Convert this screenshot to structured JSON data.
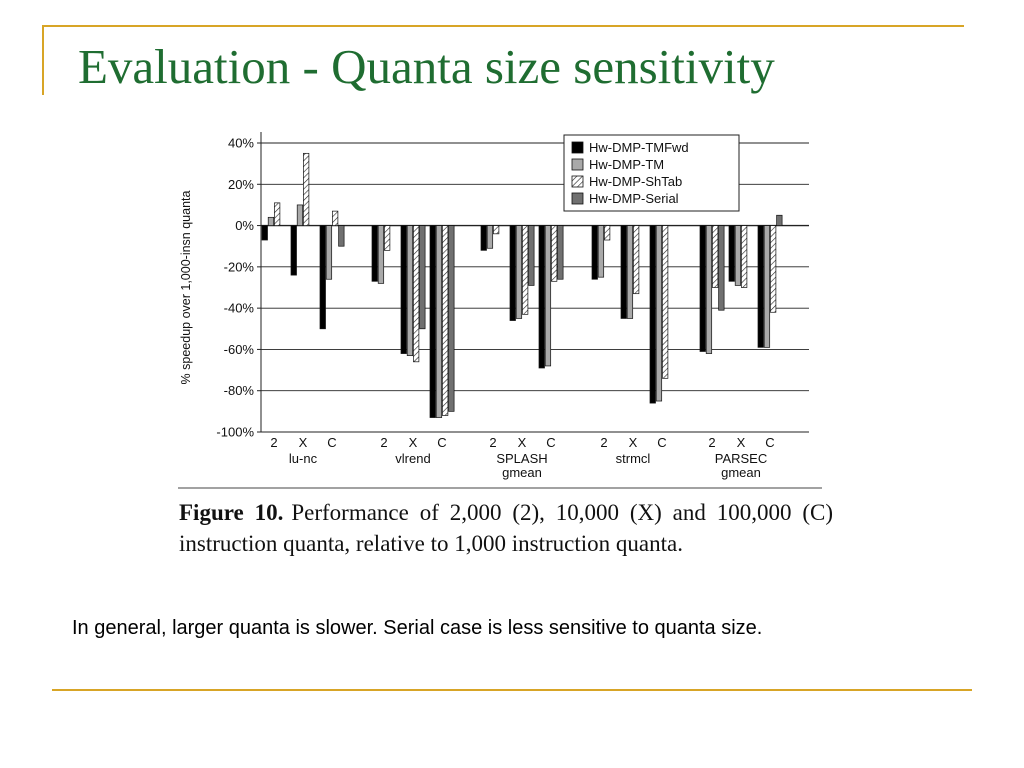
{
  "slide": {
    "title": "Evaluation -  Quanta size sensitivity",
    "note": "In general, larger quanta is slower. Serial case is less sensitive to quanta size.",
    "accent_color": "#d8a526",
    "title_color": "#1f6d31"
  },
  "figure": {
    "label": "Figure 10.",
    "caption": "Performance of 2,000 (2), 10,000 (X) and 100,000 (C) instruction quanta, relative to 1,000 instruction quanta."
  },
  "chart_data": {
    "type": "bar",
    "ylabel": "% speedup over 1,000-insn quanta",
    "ylim": [
      -100,
      40
    ],
    "yticks": [
      40,
      20,
      0,
      -20,
      -40,
      -60,
      -80,
      -100
    ],
    "ytick_labels": [
      "40%",
      "20%",
      "0%",
      "-20%",
      "-40%",
      "-60%",
      "-80%",
      "-100%"
    ],
    "grid": true,
    "legend_position": "top-right",
    "groups": [
      {
        "label": [
          "lu-nc"
        ],
        "subcategories": [
          "2",
          "X",
          "C"
        ]
      },
      {
        "label": [
          "vlrend"
        ],
        "subcategories": [
          "2",
          "X",
          "C"
        ]
      },
      {
        "label": [
          "SPLASH",
          "gmean"
        ],
        "subcategories": [
          "2",
          "X",
          "C"
        ]
      },
      {
        "label": [
          "strmcl"
        ],
        "subcategories": [
          "2",
          "X",
          "C"
        ]
      },
      {
        "label": [
          "PARSEC",
          "gmean"
        ],
        "subcategories": [
          "2",
          "X",
          "C"
        ]
      }
    ],
    "series": [
      {
        "name": "Hw-DMP-TMFwd",
        "color": "#000000",
        "pattern": "solid",
        "values": [
          [
            -7,
            -24,
            -50
          ],
          [
            -27,
            -62,
            -93
          ],
          [
            -12,
            -46,
            -69
          ],
          [
            -26,
            -45,
            -86
          ],
          [
            -61,
            -27,
            -59
          ]
        ]
      },
      {
        "name": "Hw-DMP-TM",
        "color": "#a9a9a9",
        "pattern": "solid",
        "values": [
          [
            4,
            10,
            -26
          ],
          [
            -28,
            -63,
            -93
          ],
          [
            -11,
            -45,
            -68
          ],
          [
            -25,
            -45,
            -85
          ],
          [
            -62,
            -29,
            -59
          ]
        ]
      },
      {
        "name": "Hw-DMP-ShTab",
        "color": "#ffffff",
        "pattern": "hatch",
        "values": [
          [
            11,
            35,
            7
          ],
          [
            -12,
            -66,
            -92
          ],
          [
            -4,
            -43,
            -27
          ],
          [
            -7,
            -33,
            -74
          ],
          [
            -30,
            -30,
            -42
          ]
        ]
      },
      {
        "name": "Hw-DMP-Serial",
        "color": "#707070",
        "pattern": "solid",
        "values": [
          [
            0,
            0,
            -10
          ],
          [
            0,
            -50,
            -90
          ],
          [
            0,
            -29,
            -26
          ],
          [
            0,
            0,
            0
          ],
          [
            -41,
            0,
            5
          ]
        ]
      }
    ]
  }
}
